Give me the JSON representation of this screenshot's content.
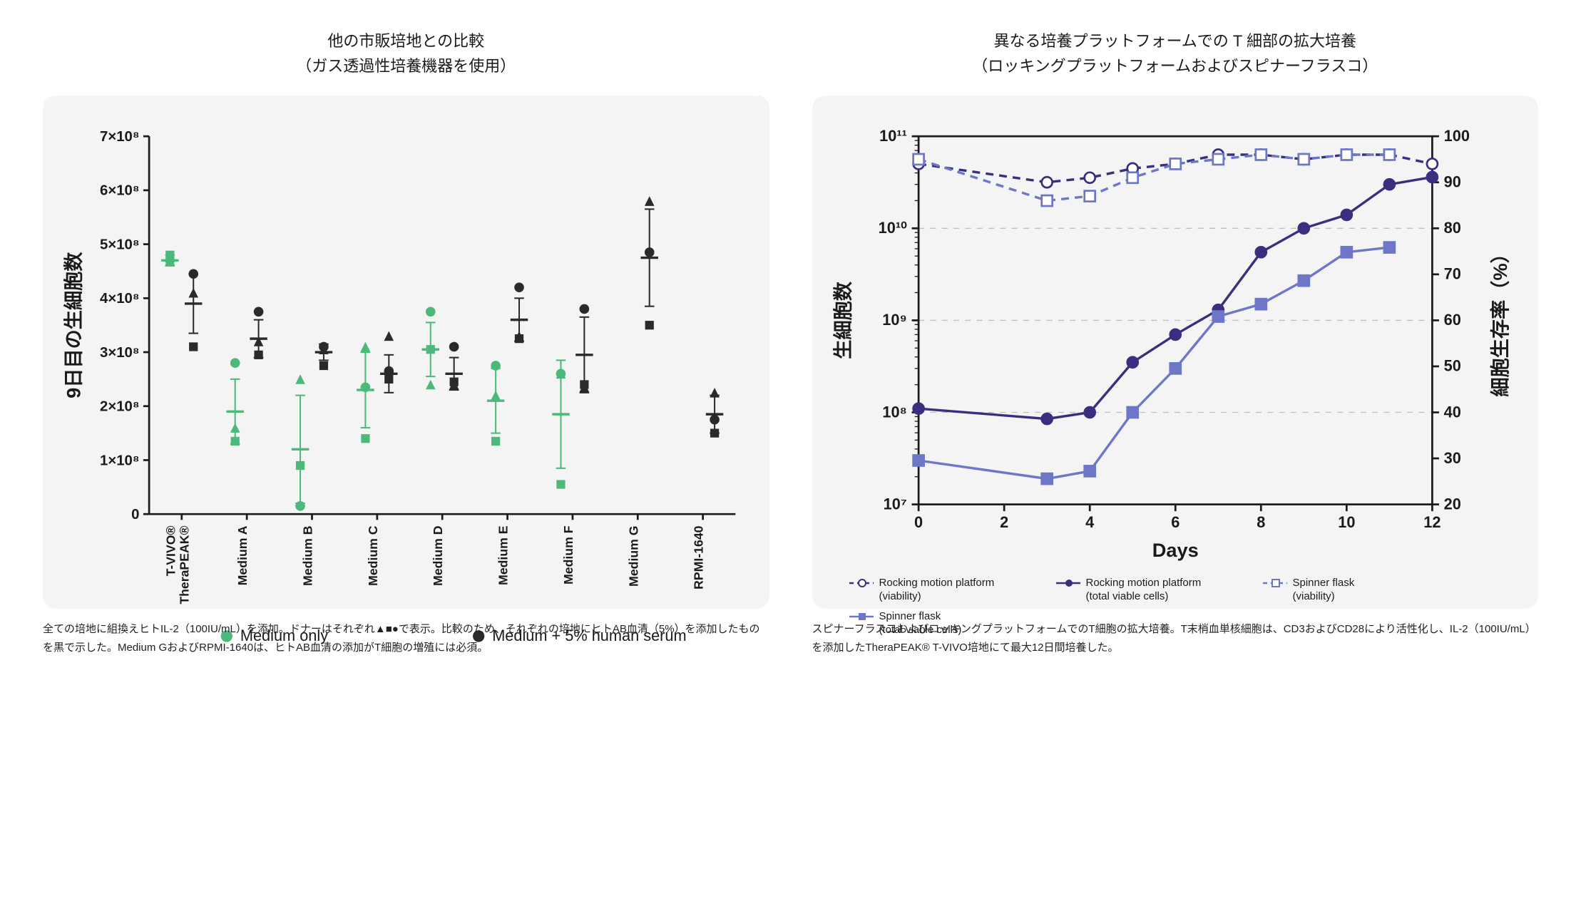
{
  "left": {
    "title_line1": "他の市販培地との比較",
    "title_line2": "（ガス透過性培養機器を使用）",
    "caption": "全ての培地に組換えヒトIL-2（100IU/mL）を添加。ドナーはそれぞれ▲■●で表示。比較のため、それぞれの培地にヒトAB血清（5%）を添加したものを黒で示した。Medium GおよびRPMI-1640は、ヒトAB血清の添加がT細胞の増殖には必須。",
    "y_axis_label": "9日目の生細胞数",
    "y_ticks_labels": [
      "0",
      "1×10⁸",
      "2×10⁸",
      "3×10⁸",
      "4×10⁸",
      "5×10⁸",
      "6×10⁸",
      "7×10⁸"
    ],
    "y_ticks_values": [
      0,
      1,
      2,
      3,
      4,
      5,
      6,
      7
    ],
    "y_max": 7,
    "categories": [
      "TheraPEAK®\nT-VIVO®",
      "Medium A",
      "Medium B",
      "Medium C",
      "Medium D",
      "Medium E",
      "Medium F",
      "Medium G",
      "RPMI-1640"
    ],
    "colors": {
      "green": "#4cb97a",
      "black": "#2a2a2a",
      "axis": "#1a1a1a",
      "grid": "#cccccc",
      "bg": "#f4f4f4"
    },
    "series": [
      {
        "name": "Medium only",
        "color": "#4cb97a",
        "points": [
          {
            "cat": 0,
            "tri": 4.7,
            "sq": 4.8,
            "cir": 4.7
          },
          {
            "cat": 1,
            "tri": 1.6,
            "sq": 1.35,
            "cir": 2.8
          },
          {
            "cat": 2,
            "tri": 2.5,
            "sq": 0.9,
            "cir": 0.15
          },
          {
            "cat": 3,
            "tri": 3.1,
            "sq": 1.4,
            "cir": 2.35
          },
          {
            "cat": 4,
            "tri": 2.4,
            "sq": 3.05,
            "cir": 3.75
          },
          {
            "cat": 5,
            "tri": 2.2,
            "sq": 1.35,
            "cir": 2.75
          },
          {
            "cat": 6,
            "tri": 2.6,
            "sq": 0.55,
            "cir": 2.6
          },
          {
            "cat": 7,
            "tri": null,
            "sq": null,
            "cir": null
          },
          {
            "cat": 8,
            "tri": null,
            "sq": null,
            "cir": null
          }
        ],
        "means": [
          4.7,
          1.9,
          1.2,
          2.3,
          3.05,
          2.1,
          1.85,
          null,
          null
        ],
        "err": [
          0.1,
          0.6,
          1.0,
          0.7,
          0.5,
          0.6,
          1.0,
          null,
          null
        ]
      },
      {
        "name": "Medium + 5% human serum",
        "color": "#2a2a2a",
        "points": [
          {
            "cat": 0,
            "tri": 4.1,
            "sq": 3.1,
            "cir": 4.45
          },
          {
            "cat": 1,
            "tri": 3.2,
            "sq": 2.95,
            "cir": 3.75
          },
          {
            "cat": 2,
            "tri": 3.05,
            "sq": 2.75,
            "cir": 3.1
          },
          {
            "cat": 3,
            "tri": 3.3,
            "sq": 2.5,
            "cir": 2.65
          },
          {
            "cat": 4,
            "tri": 2.4,
            "sq": 2.45,
            "cir": 3.1
          },
          {
            "cat": 5,
            "tri": 3.3,
            "sq": 3.25,
            "cir": 4.2
          },
          {
            "cat": 6,
            "tri": 2.35,
            "sq": 2.4,
            "cir": 3.8
          },
          {
            "cat": 7,
            "tri": 5.8,
            "sq": 3.5,
            "cir": 4.85
          },
          {
            "cat": 8,
            "tri": 2.25,
            "sq": 1.5,
            "cir": 1.75
          }
        ],
        "means": [
          3.9,
          3.25,
          3.0,
          2.6,
          2.6,
          3.6,
          2.95,
          4.75,
          1.85
        ],
        "err": [
          0.55,
          0.35,
          0.15,
          0.35,
          0.3,
          0.4,
          0.7,
          0.9,
          0.35
        ]
      }
    ],
    "legend": [
      {
        "label": "Medium only",
        "color": "#4cb97a",
        "marker": "circle"
      },
      {
        "label": "Medium + 5% human serum",
        "color": "#2a2a2a",
        "marker": "circle"
      }
    ]
  },
  "right": {
    "title_line1": "異なる培養プラットフォームでの T 細部の拡大培養",
    "title_line2": "（ロッキングプラットフォームおよびスピナーフラスコ）",
    "caption": "スピナーフラスコおよびロッキングプラットフォームでのT細胞の拡大培養。T末梢血単核細胞は、CD3およびCD28により活性化し、IL-2（100IU/mL）を添加したTheraPEAK®  T-VIVO培地にて最大12日間培養した。",
    "x_axis_label": "Days",
    "y1_axis_label": "生細胞数",
    "y2_axis_label": "細胞生存率（%）",
    "x_ticks": [
      0,
      2,
      4,
      6,
      8,
      10,
      12
    ],
    "y1_ticks_exp": [
      7,
      8,
      9,
      10,
      11
    ],
    "y1_tick_labels": [
      "10⁷",
      "10⁸",
      "10⁹",
      "10¹⁰",
      "10¹¹"
    ],
    "y2_ticks": [
      20,
      30,
      40,
      50,
      60,
      70,
      80,
      90,
      100
    ],
    "colors": {
      "dark": "#3b2e7e",
      "light": "#6d76c7",
      "axis": "#1a1a1a",
      "grid": "#bfbfbf",
      "bg": "#f4f4f4"
    },
    "series": {
      "rocking_cells": {
        "x": [
          0,
          3,
          4,
          5,
          6,
          7,
          8,
          9,
          10,
          11,
          12
        ],
        "y": [
          110000000.0,
          85000000.0,
          100000000.0,
          350000000.0,
          700000000.0,
          1300000000.0,
          5500000000.0,
          10000000000.0,
          14000000000.0,
          30000000000.0,
          36000000000.0
        ],
        "color": "#3b2e7e",
        "dash": false,
        "marker": "circle-filled"
      },
      "spinner_cells": {
        "x": [
          0,
          3,
          4,
          5,
          6,
          7,
          8,
          9,
          10,
          11
        ],
        "y": [
          30000000.0,
          19000000.0,
          23000000.0,
          100000000.0,
          300000000.0,
          1100000000.0,
          1500000000.0,
          2700000000.0,
          5500000000.0,
          6200000000.0
        ],
        "color": "#6d76c7",
        "dash": false,
        "marker": "square-filled"
      },
      "rocking_viab": {
        "x": [
          0,
          3,
          4,
          5,
          6,
          7,
          8,
          9,
          10,
          11,
          12
        ],
        "y": [
          94,
          90,
          91,
          93,
          94,
          96,
          96,
          95,
          96,
          96,
          94
        ],
        "color": "#3b2e7e",
        "dash": true,
        "marker": "circle-open"
      },
      "spinner_viab": {
        "x": [
          0,
          3,
          4,
          5,
          6,
          7,
          8,
          9,
          10,
          11
        ],
        "y": [
          95,
          86,
          87,
          91,
          94,
          95,
          96,
          95,
          96,
          96
        ],
        "color": "#6d76c7",
        "dash": true,
        "marker": "square-open"
      }
    },
    "legend": [
      {
        "label": "Rocking motion platform\n(viability)",
        "color": "#3b2e7e",
        "dash": true,
        "marker": "circle-open"
      },
      {
        "label": "Rocking motion platform\n(total viable cells)",
        "color": "#3b2e7e",
        "dash": false,
        "marker": "circle-filled"
      },
      {
        "label": "Spinner flask\n(viability)",
        "color": "#6d76c7",
        "dash": true,
        "marker": "square-open"
      },
      {
        "label": "Spinner flask\n(total viable cells)",
        "color": "#6d76c7",
        "dash": false,
        "marker": "square-filled"
      }
    ]
  }
}
